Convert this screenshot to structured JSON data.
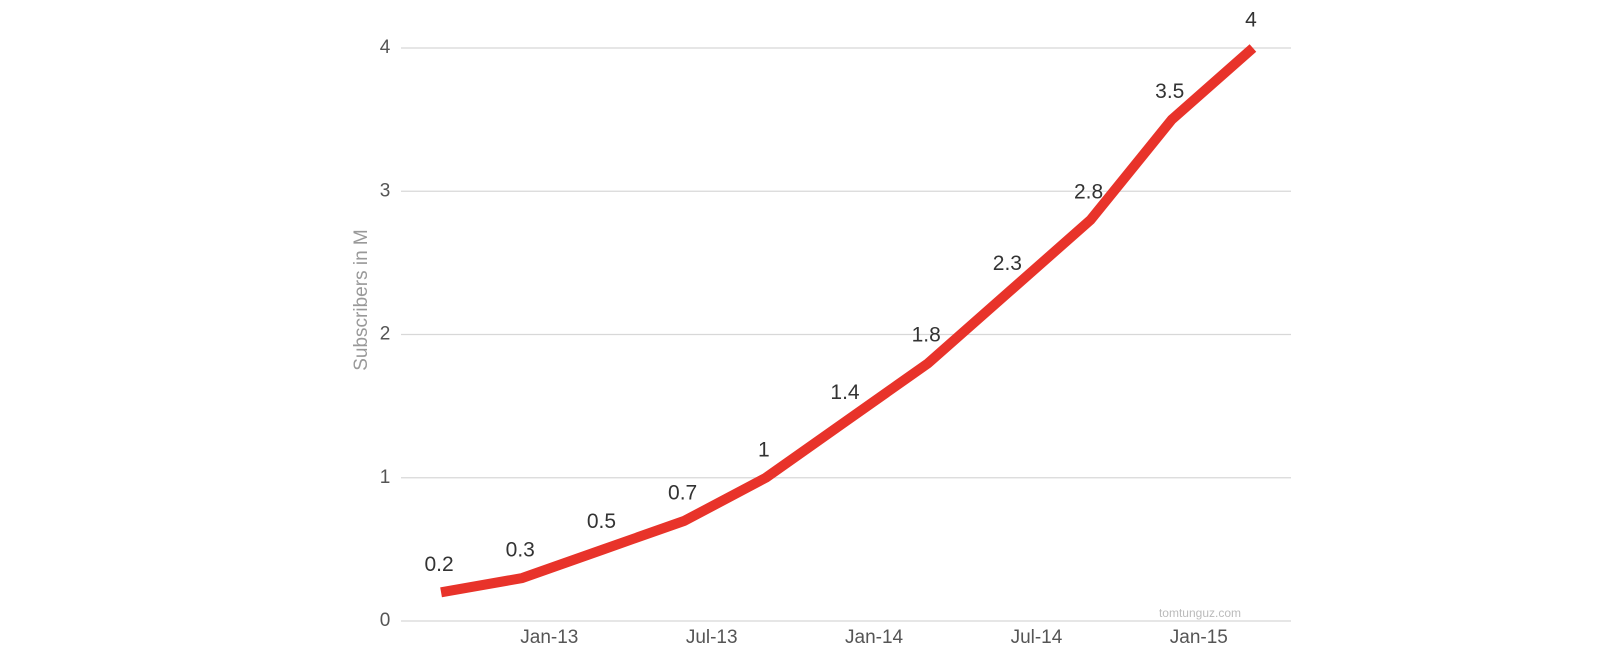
{
  "chart_data": {
    "type": "line",
    "y_label": "Subscribers in M",
    "watermark": "tomtunguz.com",
    "x": [
      "2012-09",
      "2012-12",
      "2013-03",
      "2013-06",
      "2013-09",
      "2013-12",
      "2014-03",
      "2014-06",
      "2014-09",
      "2014-12",
      "2015-03"
    ],
    "series": [
      {
        "name": "Subscribers",
        "color": "#e8332a",
        "values": [
          0.2,
          0.3,
          0.5,
          0.7,
          1,
          1.4,
          1.8,
          2.3,
          2.8,
          3.5,
          4
        ]
      }
    ],
    "xlim": [
      "2012-08",
      "2015-04"
    ],
    "xticks": [
      {
        "value": "2013-01",
        "label": "Jan-13"
      },
      {
        "value": "2013-07",
        "label": "Jul-13"
      },
      {
        "value": "2014-01",
        "label": "Jan-14"
      },
      {
        "value": "2014-07",
        "label": "Jul-14"
      },
      {
        "value": "2015-01",
        "label": "Jan-15"
      }
    ],
    "ylim": [
      0,
      4
    ],
    "yticks": [
      0,
      1,
      2,
      3,
      4
    ],
    "grid": true
  }
}
